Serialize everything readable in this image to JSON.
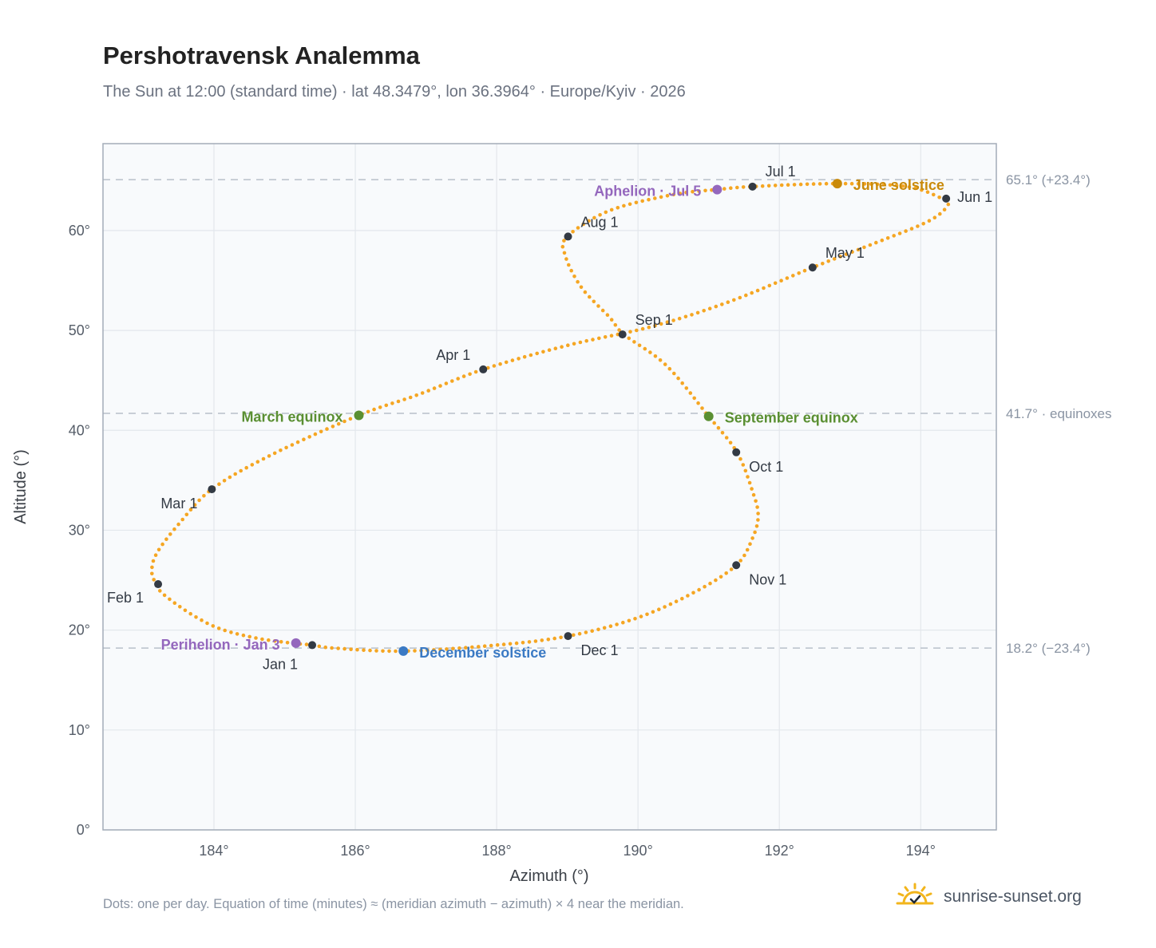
{
  "header": {
    "title": "Pershotravensk Analemma",
    "subtitle": "The Sun at 12:00 (standard time) · lat 48.3479°, lon 36.3964° · Europe/Kyiv · 2026"
  },
  "footer": {
    "note": "Dots: one per day. Equation of time (minutes) ≈ (meridian azimuth − azimuth) × 4 near the meridian.",
    "brand": "sunrise-sunset.org"
  },
  "colors": {
    "path": "#f5a623",
    "month_marker": "#333a44",
    "equinox": "#5a8f32",
    "june_solstice": "#c98a0a",
    "december_solstice": "#3b7ac4",
    "apsis": "#9467bd",
    "plot_bg": "#f8fafc",
    "grid": "#e3e7ec",
    "ref_line": "#b8c0ca",
    "axis_frame": "#a3acb8"
  },
  "icons": {
    "brand": "sun-logo-icon"
  },
  "chart_data": {
    "type": "scatter",
    "xlabel": "Azimuth (°)",
    "ylabel": "Altitude (°)",
    "xlim": [
      182.43,
      195.07
    ],
    "ylim": [
      0,
      68.7
    ],
    "x_ticks": [
      184,
      186,
      188,
      190,
      192,
      194
    ],
    "x_tick_labels": [
      "184°",
      "186°",
      "188°",
      "190°",
      "192°",
      "194°"
    ],
    "y_ticks": [
      0,
      10,
      20,
      30,
      40,
      50,
      60
    ],
    "y_tick_labels": [
      "0°",
      "10°",
      "20°",
      "30°",
      "40°",
      "50°",
      "60°"
    ],
    "grid": true,
    "reference_lines": [
      {
        "y": 65.1,
        "label": "65.1° (+23.4°)"
      },
      {
        "y": 41.7,
        "label": "41.7° · equinoxes"
      },
      {
        "y": 18.2,
        "label": "18.2° (−23.4°)"
      }
    ],
    "path_keypoints": [
      [
        185.4,
        18.5
      ],
      [
        185.1,
        18.7
      ],
      [
        184.6,
        19.2
      ],
      [
        184.1,
        20.1
      ],
      [
        183.7,
        21.5
      ],
      [
        183.3,
        23.5
      ],
      [
        183.18,
        24.6
      ],
      [
        183.12,
        26.0
      ],
      [
        183.2,
        27.8
      ],
      [
        183.5,
        30.6
      ],
      [
        183.97,
        34.1
      ],
      [
        184.8,
        37.5
      ],
      [
        186.05,
        41.5
      ],
      [
        186.9,
        43.6
      ],
      [
        187.81,
        46.1
      ],
      [
        189.0,
        48.5
      ],
      [
        190.2,
        50.4
      ],
      [
        191.3,
        52.9
      ],
      [
        192.47,
        56.3
      ],
      [
        193.3,
        58.6
      ],
      [
        194.1,
        60.9
      ],
      [
        194.38,
        62.5
      ],
      [
        194.3,
        63.2
      ],
      [
        193.8,
        64.4
      ],
      [
        192.82,
        64.7
      ],
      [
        191.61,
        64.4
      ],
      [
        191.12,
        64.1
      ],
      [
        190.5,
        63.6
      ],
      [
        189.6,
        62.0
      ],
      [
        189.0,
        59.4
      ],
      [
        188.97,
        57.5
      ],
      [
        189.2,
        54.3
      ],
      [
        189.6,
        51.3
      ],
      [
        189.8,
        49.6
      ],
      [
        190.4,
        46.5
      ],
      [
        191.0,
        41.4
      ],
      [
        191.4,
        37.8
      ],
      [
        191.62,
        33.9
      ],
      [
        191.7,
        31.5
      ],
      [
        191.62,
        29.2
      ],
      [
        191.39,
        26.5
      ],
      [
        190.8,
        23.8
      ],
      [
        189.98,
        21.2
      ],
      [
        189.01,
        19.4
      ],
      [
        188.0,
        18.5
      ],
      [
        186.68,
        17.9
      ],
      [
        185.7,
        18.2
      ],
      [
        185.4,
        18.5
      ]
    ],
    "month_markers": [
      {
        "label": "Jan 1",
        "x": 185.39,
        "y": 18.5
      },
      {
        "label": "Feb 1",
        "x": 183.21,
        "y": 24.6
      },
      {
        "label": "Mar 1",
        "x": 183.97,
        "y": 34.1
      },
      {
        "label": "Apr 1",
        "x": 187.81,
        "y": 46.1
      },
      {
        "label": "May 1",
        "x": 192.47,
        "y": 56.3
      },
      {
        "label": "Jun 1",
        "x": 194.36,
        "y": 63.2
      },
      {
        "label": "Jul 1",
        "x": 191.62,
        "y": 64.4
      },
      {
        "label": "Aug 1",
        "x": 189.01,
        "y": 59.4
      },
      {
        "label": "Sep 1",
        "x": 189.78,
        "y": 49.6
      },
      {
        "label": "Oct 1",
        "x": 191.39,
        "y": 37.8
      },
      {
        "label": "Nov 1",
        "x": 191.39,
        "y": 26.5
      },
      {
        "label": "Dec 1",
        "x": 189.01,
        "y": 19.4
      }
    ],
    "events": [
      {
        "label": "March equinox",
        "x": 186.05,
        "y": 41.5,
        "kind": "equinox"
      },
      {
        "label": "September equinox",
        "x": 191.0,
        "y": 41.4,
        "kind": "equinox"
      },
      {
        "label": "June solstice",
        "x": 192.82,
        "y": 64.7,
        "kind": "june"
      },
      {
        "label": "December solstice",
        "x": 186.68,
        "y": 17.9,
        "kind": "december"
      },
      {
        "label": "Aphelion · Jul 5",
        "x": 191.12,
        "y": 64.1,
        "kind": "apsis"
      },
      {
        "label": "Perihelion · Jan 3",
        "x": 185.16,
        "y": 18.7,
        "kind": "apsis"
      }
    ]
  }
}
